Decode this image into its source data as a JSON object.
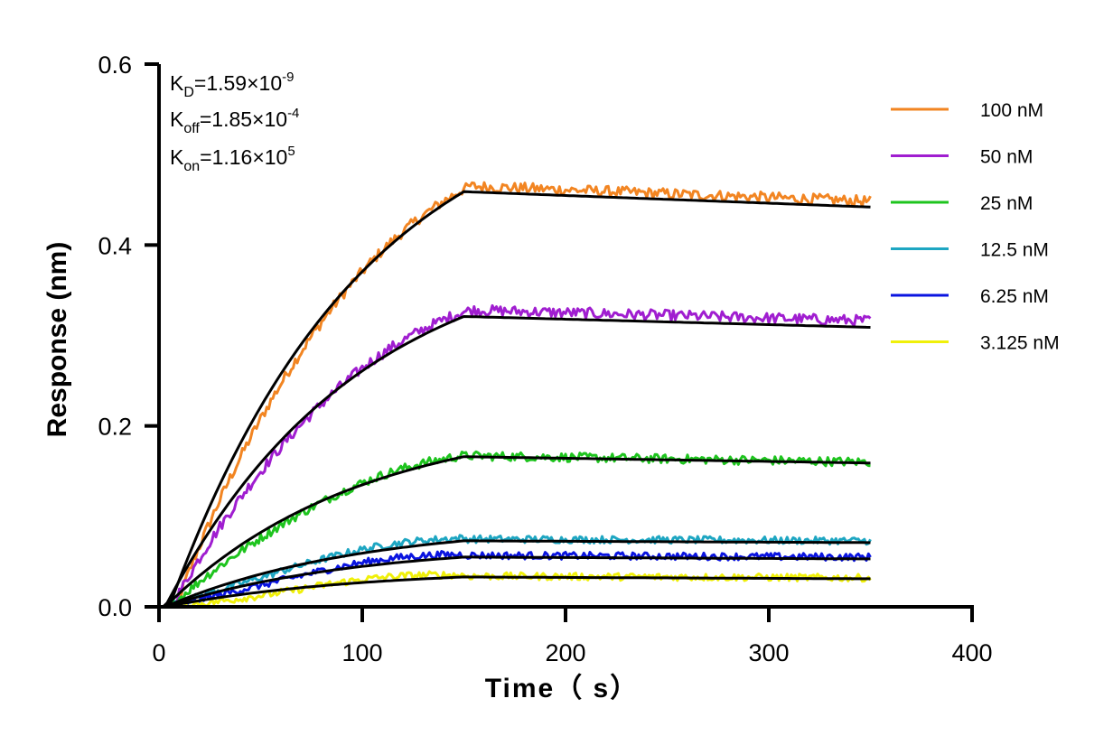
{
  "chart_data": {
    "type": "line",
    "xlabel": "Time（ s）",
    "ylabel": "Response (nm)",
    "xlim": [
      0,
      400
    ],
    "ylim": [
      0,
      0.6
    ],
    "xticks": [
      "0",
      "100",
      "200",
      "300",
      "400"
    ],
    "yticks": [
      "0.0",
      "0.2",
      "0.4",
      "0.6"
    ],
    "grid": false,
    "legend_position": "right",
    "association_end_s": 150,
    "end_s": 350,
    "annotations": {
      "kd": {
        "base": "K",
        "sub": "D",
        "value": "=1.59×10",
        "exp": "-9"
      },
      "koff": {
        "base": "K",
        "sub": "off",
        "value": "=1.85×10",
        "exp": "-4"
      },
      "kon": {
        "base": "K",
        "sub": "on",
        "value": "=1.16×10",
        "exp": "5"
      }
    },
    "series": [
      {
        "name": "100 nM",
        "color": "#f28522",
        "start_x": 5,
        "plateau": 0.459,
        "final": 0.442,
        "measured_offset": 0.006,
        "noise": 0.006,
        "lag_x": 3
      },
      {
        "name": "50 nM",
        "color": "#a01ed0",
        "start_x": 3,
        "plateau": 0.321,
        "final": 0.309,
        "measured_offset": 0.007,
        "noise": 0.006,
        "lag_x": 3
      },
      {
        "name": "25 nM",
        "color": "#1ec41e",
        "start_x": 3,
        "plateau": 0.166,
        "final": 0.159,
        "measured_offset": 0.001,
        "noise": 0.005,
        "lag_x": 2
      },
      {
        "name": "12.5 nM",
        "color": "#1ea6c2",
        "start_x": 3,
        "plateau": 0.073,
        "final": 0.071,
        "measured_offset": 0.002,
        "noise": 0.004,
        "lag_x": 1
      },
      {
        "name": "6.25 nM",
        "color": "#0a14e0",
        "start_x": 3,
        "plateau": 0.055,
        "final": 0.053,
        "measured_offset": 0.002,
        "noise": 0.004,
        "lag_x": 1
      },
      {
        "name": "3.125 nM",
        "color": "#f0f00a",
        "start_x": 3,
        "plateau": 0.033,
        "final": 0.031,
        "measured_offset": 0.001,
        "noise": 0.004,
        "lag_x": 2
      }
    ],
    "fit_color": "#000000"
  }
}
